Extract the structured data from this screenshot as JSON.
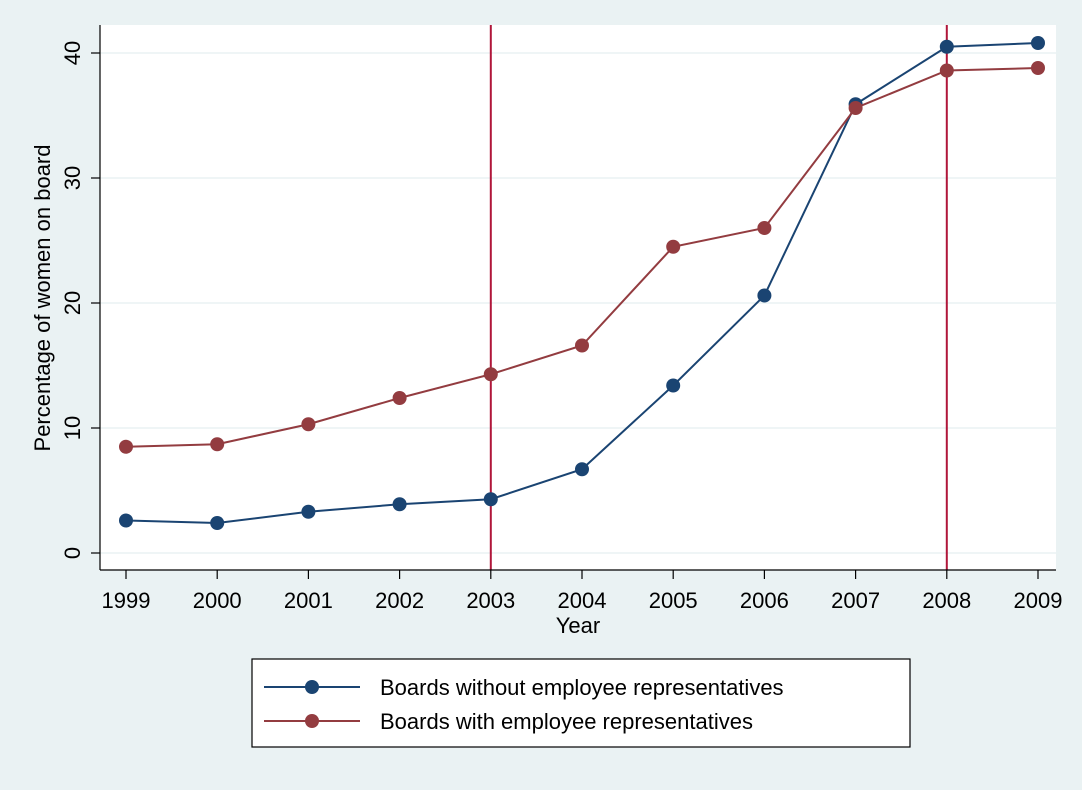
{
  "chart_data": {
    "type": "line",
    "xlabel": "Year",
    "ylabel": "Percentage of women on board",
    "x": [
      1999,
      2000,
      2001,
      2002,
      2003,
      2004,
      2005,
      2006,
      2007,
      2008,
      2009
    ],
    "x_tick_labels": [
      "1999",
      "2000",
      "2001",
      "2002",
      "2003",
      "2004",
      "2005",
      "2006",
      "2007",
      "2008",
      "2009"
    ],
    "xlim": [
      1999,
      2009
    ],
    "ylim": [
      0,
      41
    ],
    "y_ticks": [
      0,
      10,
      20,
      30,
      40
    ],
    "y_tick_labels": [
      "0",
      "10",
      "20",
      "30",
      "40"
    ],
    "grid": true,
    "legend_position": "bottom",
    "reference_lines_x": [
      2003,
      2008
    ],
    "reference_line_color": "#b0163a",
    "series": [
      {
        "name": "Boards without employee representatives",
        "color": "#1a4472",
        "values": [
          2.6,
          2.4,
          3.3,
          3.9,
          4.3,
          6.7,
          13.4,
          20.6,
          35.9,
          40.5,
          40.8
        ]
      },
      {
        "name": "Boards with employee representatives",
        "color": "#933c40",
        "values": [
          8.5,
          8.7,
          10.3,
          12.4,
          14.3,
          16.6,
          24.5,
          26.0,
          35.6,
          38.6,
          38.8
        ]
      }
    ]
  }
}
